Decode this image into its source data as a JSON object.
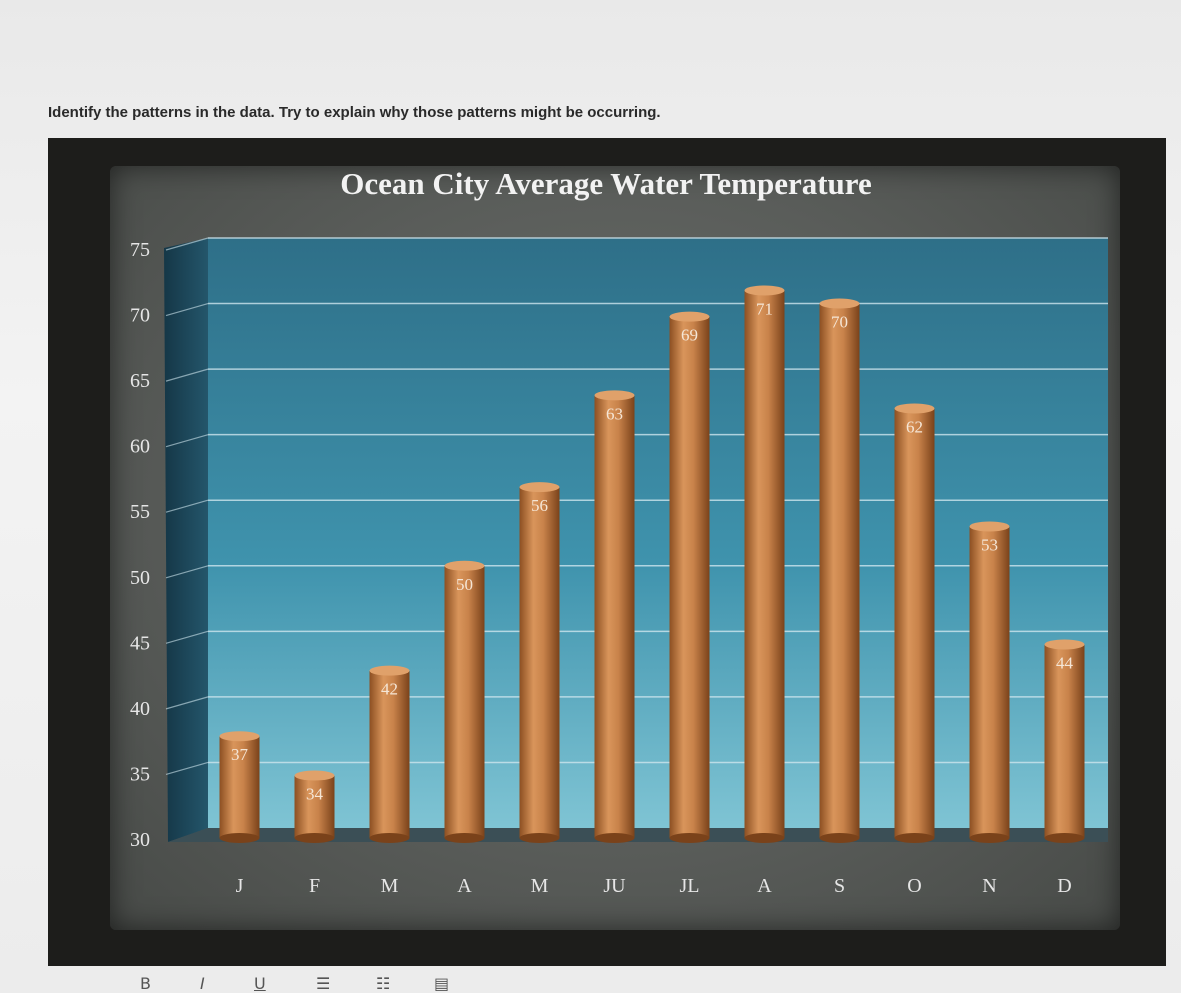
{
  "question": {
    "text": "Identify the patterns in the data. Try to explain why those patterns might be occurring."
  },
  "chart_data": {
    "type": "bar",
    "title": "Ocean City Average Water Temperature",
    "categories": [
      "J",
      "F",
      "M",
      "A",
      "M",
      "JU",
      "JL",
      "A",
      "S",
      "O",
      "N",
      "D"
    ],
    "values": [
      37,
      34,
      42,
      50,
      56,
      63,
      69,
      71,
      70,
      62,
      53,
      44
    ],
    "data_labels": [
      "37",
      "34",
      "42",
      "50",
      "56",
      "63",
      "69",
      "71",
      "70",
      "62",
      "53",
      "44"
    ],
    "ylim": [
      30,
      75
    ],
    "yticks": [
      "30",
      "35",
      "40",
      "45",
      "50",
      "55",
      "60",
      "65",
      "70",
      "75"
    ],
    "xlabel": "",
    "ylabel": "",
    "grid": true,
    "legend": "none",
    "colors": {
      "bar": "#c8824a",
      "plot_background": "#3e8da6",
      "title_text": "#f2f2f2",
      "frame": "#1d1d1b"
    }
  },
  "toolbar": {
    "icons": [
      "bold-icon",
      "italic-icon",
      "underline-icon",
      "bullet-list-icon",
      "numbered-list-icon",
      "align-icon"
    ]
  }
}
